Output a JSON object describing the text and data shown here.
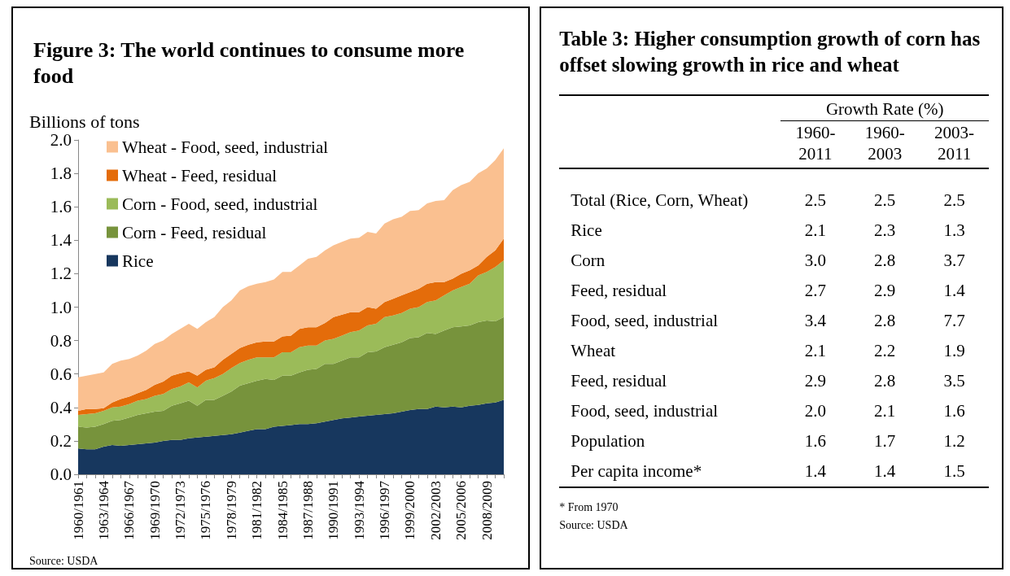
{
  "chart_data": [
    {
      "type": "area",
      "stacked": true,
      "title": "Figure 3: The world continues to consume more food",
      "ylabel": "Billions of tons",
      "categories": [
        "1960/1961",
        null,
        null,
        "1963/1964",
        null,
        null,
        "1966/1967",
        null,
        null,
        "1969/1970",
        null,
        null,
        "1972/1973",
        null,
        null,
        "1975/1976",
        null,
        null,
        "1978/1979",
        null,
        null,
        "1981/1982",
        null,
        null,
        "1984/1985",
        null,
        null,
        "1987/1988",
        null,
        null,
        "1990/1991",
        null,
        null,
        "1993/1994",
        null,
        null,
        "1996/1997",
        null,
        null,
        "1999/2000",
        null,
        null,
        "2002/2003",
        null,
        null,
        "2005/2006",
        null,
        null,
        "2008/2009",
        null,
        null
      ],
      "series": [
        {
          "name": "Rice",
          "color": "#17375e",
          "values": [
            0.155,
            0.15,
            0.15,
            0.165,
            0.175,
            0.17,
            0.175,
            0.18,
            0.185,
            0.19,
            0.2,
            0.205,
            0.205,
            0.215,
            0.22,
            0.225,
            0.23,
            0.235,
            0.24,
            0.25,
            0.26,
            0.27,
            0.27,
            0.285,
            0.29,
            0.295,
            0.3,
            0.3,
            0.305,
            0.315,
            0.325,
            0.335,
            0.34,
            0.345,
            0.35,
            0.355,
            0.36,
            0.365,
            0.375,
            0.385,
            0.39,
            0.39,
            0.405,
            0.4,
            0.405,
            0.4,
            0.41,
            0.415,
            0.425,
            0.43,
            0.445
          ]
        },
        {
          "name": "Corn - Feed, residual",
          "color": "#77933c",
          "values": [
            0.13,
            0.13,
            0.135,
            0.135,
            0.145,
            0.155,
            0.165,
            0.175,
            0.18,
            0.185,
            0.18,
            0.205,
            0.22,
            0.225,
            0.19,
            0.22,
            0.215,
            0.235,
            0.255,
            0.28,
            0.285,
            0.29,
            0.3,
            0.28,
            0.3,
            0.295,
            0.31,
            0.325,
            0.325,
            0.345,
            0.335,
            0.345,
            0.36,
            0.355,
            0.38,
            0.38,
            0.4,
            0.41,
            0.415,
            0.43,
            0.43,
            0.455,
            0.435,
            0.46,
            0.475,
            0.485,
            0.48,
            0.495,
            0.495,
            0.485,
            0.495
          ]
        },
        {
          "name": "Corn - Food, seed, industrial",
          "color": "#9bbb59",
          "values": [
            0.07,
            0.08,
            0.08,
            0.08,
            0.08,
            0.08,
            0.08,
            0.085,
            0.085,
            0.095,
            0.1,
            0.1,
            0.1,
            0.11,
            0.11,
            0.115,
            0.13,
            0.13,
            0.14,
            0.135,
            0.14,
            0.14,
            0.13,
            0.135,
            0.14,
            0.14,
            0.15,
            0.145,
            0.14,
            0.14,
            0.15,
            0.15,
            0.15,
            0.16,
            0.16,
            0.165,
            0.18,
            0.175,
            0.175,
            0.175,
            0.18,
            0.185,
            0.2,
            0.21,
            0.22,
            0.235,
            0.25,
            0.28,
            0.29,
            0.325,
            0.34
          ]
        },
        {
          "name": "Wheat - Feed, residual",
          "color": "#e46c0a",
          "values": [
            0.025,
            0.03,
            0.025,
            0.015,
            0.03,
            0.045,
            0.045,
            0.045,
            0.055,
            0.065,
            0.075,
            0.08,
            0.08,
            0.065,
            0.07,
            0.065,
            0.065,
            0.085,
            0.085,
            0.09,
            0.09,
            0.09,
            0.095,
            0.095,
            0.095,
            0.1,
            0.11,
            0.11,
            0.11,
            0.105,
            0.13,
            0.125,
            0.12,
            0.11,
            0.11,
            0.09,
            0.09,
            0.1,
            0.105,
            0.1,
            0.11,
            0.11,
            0.11,
            0.08,
            0.07,
            0.08,
            0.08,
            0.06,
            0.09,
            0.1,
            0.13
          ]
        },
        {
          "name": "Wheat - Food, seed, industrial",
          "color": "#fac090",
          "values": [
            0.2,
            0.2,
            0.21,
            0.215,
            0.23,
            0.23,
            0.225,
            0.225,
            0.235,
            0.245,
            0.245,
            0.25,
            0.265,
            0.285,
            0.28,
            0.285,
            0.3,
            0.315,
            0.32,
            0.345,
            0.35,
            0.35,
            0.355,
            0.37,
            0.385,
            0.38,
            0.38,
            0.41,
            0.42,
            0.435,
            0.43,
            0.435,
            0.44,
            0.445,
            0.45,
            0.45,
            0.47,
            0.475,
            0.47,
            0.485,
            0.47,
            0.48,
            0.485,
            0.49,
            0.53,
            0.53,
            0.53,
            0.55,
            0.53,
            0.54,
            0.54
          ]
        }
      ],
      "ylim": [
        0,
        2
      ],
      "yticks": [
        {
          "value": 0,
          "label": "0.0"
        },
        {
          "value": 0.2,
          "label": "0.2"
        },
        {
          "value": 0.4,
          "label": "0.4"
        },
        {
          "value": 0.6,
          "label": "0.6"
        },
        {
          "value": 0.8,
          "label": "0.8"
        },
        {
          "value": 1,
          "label": "1.0"
        },
        {
          "value": 1.2,
          "label": "1.2"
        },
        {
          "value": 1.4,
          "label": "1.4"
        },
        {
          "value": 1.6,
          "label": "1.6"
        },
        {
          "value": 1.8,
          "label": "1.8"
        },
        {
          "value": 2,
          "label": "2.0"
        }
      ],
      "grid": false,
      "legend": "top left",
      "annotations": [
        "Source: USDA"
      ]
    },
    {
      "type": "heatmap",
      "title": "Table 3: Higher consumption growth of corn has offset slowing growth in rice and wheat",
      "xlabel": "Growth Rate (%)",
      "categories": [
        "1960-2011",
        "1960-2003",
        "2003-2011"
      ],
      "y_categories": [
        "Total (Rice, Corn, Wheat)",
        "Rice",
        "Corn",
        "Feed, residual",
        "Food, seed, industrial",
        "Wheat",
        "Feed, residual",
        "Food, seed, industrial",
        "Population",
        "Per capita income*"
      ],
      "cells": [
        [
          2.5,
          2.5,
          2.5
        ],
        [
          2.1,
          2.3,
          1.3
        ],
        [
          3.0,
          2.8,
          3.7
        ],
        [
          2.7,
          2.9,
          1.4
        ],
        [
          3.4,
          2.8,
          7.7
        ],
        [
          2.1,
          2.2,
          1.9
        ],
        [
          2.9,
          2.8,
          3.5
        ],
        [
          2.0,
          2.1,
          1.6
        ],
        [
          1.6,
          1.7,
          1.2
        ],
        [
          1.4,
          1.4,
          1.5
        ]
      ],
      "data_labels": true,
      "cell_labels": [
        [
          "2.5",
          "2.5",
          "2.5"
        ],
        [
          "2.1",
          "2.3",
          "1.3"
        ],
        [
          "3.0",
          "2.8",
          "3.7"
        ],
        [
          "2.7",
          "2.9",
          "1.4"
        ],
        [
          "3.4",
          "2.8",
          "7.7"
        ],
        [
          "2.1",
          "2.2",
          "1.9"
        ],
        [
          "2.9",
          "2.8",
          "3.5"
        ],
        [
          "2.0",
          "2.1",
          "1.6"
        ],
        [
          "1.6",
          "1.7",
          "1.2"
        ],
        [
          "1.4",
          "1.4",
          "1.5"
        ]
      ],
      "annotations": [
        "* From 1970",
        "Source: USDA"
      ]
    }
  ]
}
